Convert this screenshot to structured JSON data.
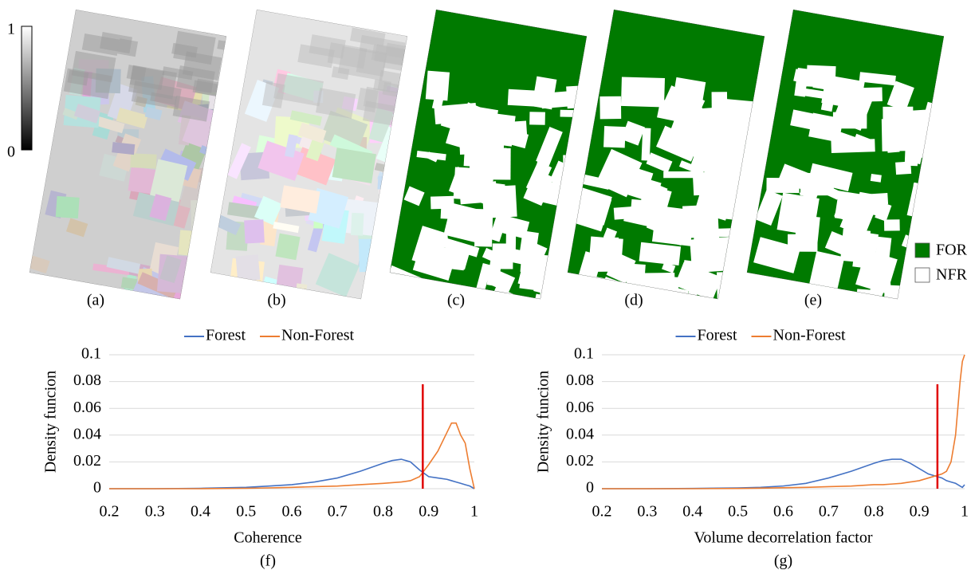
{
  "panels": {
    "colorbar": {
      "max": "1",
      "min": "0"
    },
    "captions": [
      "(a)",
      "(b)",
      "(c)",
      "(d)",
      "(e)"
    ],
    "legend": [
      {
        "name": "FOR",
        "color": "#007a00"
      },
      {
        "name": "NFR",
        "color": "#ffffff"
      }
    ]
  },
  "chart_data": [
    {
      "type": "line",
      "caption": "(f)",
      "x_label": "Coherence",
      "y_label": "Density funcion",
      "x": [
        0.2,
        0.3,
        0.4,
        0.5,
        0.55,
        0.6,
        0.65,
        0.7,
        0.75,
        0.8,
        0.82,
        0.84,
        0.86,
        0.88,
        0.9,
        0.92,
        0.94,
        0.95,
        0.96,
        0.97,
        0.98,
        0.99,
        1.0
      ],
      "series": [
        {
          "name": "Forest",
          "color": "#4472c4",
          "values": [
            0,
            0,
            0.0003,
            0.001,
            0.002,
            0.003,
            0.005,
            0.008,
            0.013,
            0.019,
            0.021,
            0.022,
            0.02,
            0.014,
            0.009,
            0.008,
            0.007,
            0.006,
            0.005,
            0.004,
            0.003,
            0.002,
            0
          ]
        },
        {
          "name": "Non-Forest",
          "color": "#ed7d31",
          "values": [
            0,
            0,
            0,
            0.0003,
            0.0006,
            0.001,
            0.0015,
            0.002,
            0.003,
            0.004,
            0.0045,
            0.005,
            0.006,
            0.009,
            0.018,
            0.028,
            0.042,
            0.049,
            0.049,
            0.04,
            0.034,
            0.015,
            0
          ]
        }
      ],
      "vlines": [
        {
          "x": 0.887,
          "ymax": 0.078,
          "color": "#e00000"
        }
      ],
      "xlim": [
        0.2,
        1
      ],
      "xticks": [
        0.2,
        0.3,
        0.4,
        0.5,
        0.6,
        0.7,
        0.8,
        0.9,
        1
      ],
      "ylim": [
        0,
        0.1
      ],
      "yticks": [
        0,
        0.02,
        0.04,
        0.06,
        0.08,
        0.1
      ],
      "grid": true
    },
    {
      "type": "line",
      "caption": "(g)",
      "x_label": "Volume decorrelation factor",
      "y_label": "Density funcion",
      "x": [
        0.2,
        0.3,
        0.4,
        0.5,
        0.55,
        0.6,
        0.65,
        0.7,
        0.75,
        0.8,
        0.82,
        0.84,
        0.86,
        0.88,
        0.9,
        0.92,
        0.94,
        0.95,
        0.96,
        0.97,
        0.98,
        0.985,
        0.99,
        0.995,
        1.0
      ],
      "series": [
        {
          "name": "Forest",
          "color": "#4472c4",
          "values": [
            0,
            0,
            0.0002,
            0.0006,
            0.001,
            0.002,
            0.004,
            0.008,
            0.013,
            0.019,
            0.021,
            0.022,
            0.022,
            0.019,
            0.015,
            0.011,
            0.009,
            0.008,
            0.006,
            0.005,
            0.004,
            0.003,
            0.002,
            0.001,
            0.003
          ]
        },
        {
          "name": "Non-Forest",
          "color": "#ed7d31",
          "values": [
            0,
            0,
            0,
            0.0002,
            0.0004,
            0.0007,
            0.001,
            0.0015,
            0.002,
            0.003,
            0.003,
            0.0035,
            0.004,
            0.005,
            0.006,
            0.008,
            0.01,
            0.011,
            0.013,
            0.02,
            0.04,
            0.06,
            0.08,
            0.095,
            0.1
          ]
        }
      ],
      "vlines": [
        {
          "x": 0.94,
          "ymax": 0.078,
          "color": "#e00000"
        }
      ],
      "xlim": [
        0.2,
        1
      ],
      "xticks": [
        0.2,
        0.3,
        0.4,
        0.5,
        0.6,
        0.7,
        0.8,
        0.9,
        1
      ],
      "ylim": [
        0,
        0.1
      ],
      "yticks": [
        0,
        0.02,
        0.04,
        0.06,
        0.08,
        0.1
      ],
      "grid": true
    }
  ]
}
